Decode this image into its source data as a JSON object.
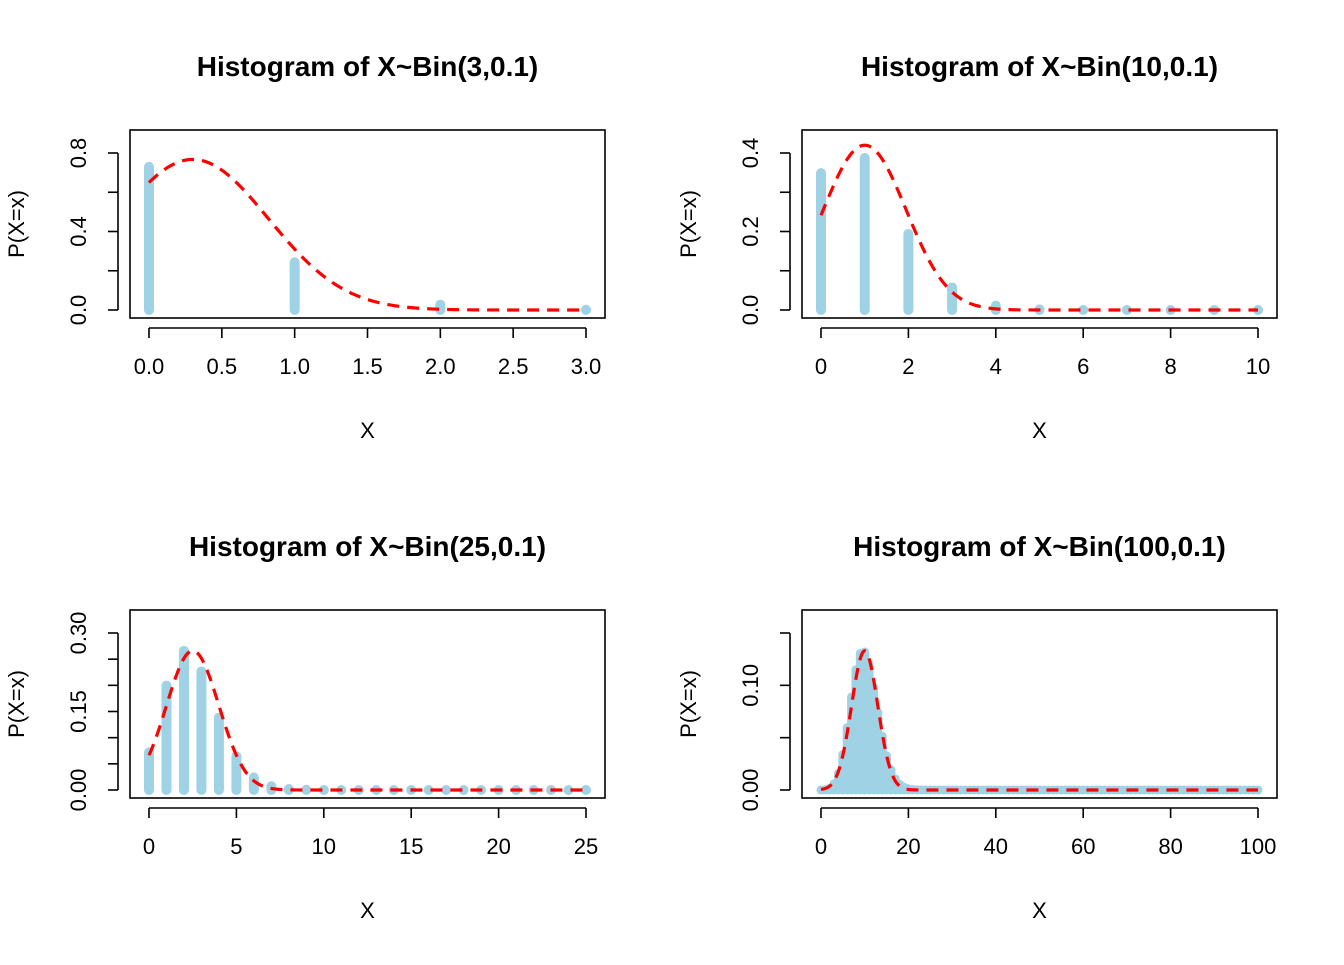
{
  "colors": {
    "bar": "#9fd2e4",
    "curve": "#ff0000",
    "axis": "#000000"
  },
  "chart_data": [
    {
      "type": "bar",
      "title": "Histogram of X~Bin(3,0.1)",
      "xlabel": "X",
      "ylabel": "P(X=x)",
      "n": 3,
      "p": 0.1,
      "xlim": [
        0,
        3
      ],
      "ylim": [
        0,
        0.9
      ],
      "xticks": [
        0,
        0.5,
        1,
        1.5,
        2,
        2.5,
        3
      ],
      "xtick_labels": [
        "0.0",
        "0.5",
        "1.0",
        "1.5",
        "2.0",
        "2.5",
        "3.0"
      ],
      "yticks": [
        0,
        0.2,
        0.4,
        0.6,
        0.8
      ],
      "ytick_labels": [
        "0.0",
        "",
        "0.4",
        "",
        "0.8"
      ],
      "x": [
        0,
        1,
        2,
        3
      ],
      "values": [
        0.729,
        0.243,
        0.027,
        0.001
      ],
      "overlay": {
        "type": "line",
        "style": "dashed",
        "description": "normal density",
        "mean": 0.3,
        "sd": 0.52
      }
    },
    {
      "type": "bar",
      "title": "Histogram of X~Bin(10,0.1)",
      "xlabel": "X",
      "ylabel": "P(X=x)",
      "n": 10,
      "p": 0.1,
      "xlim": [
        0,
        10
      ],
      "ylim": [
        0,
        0.48
      ],
      "xticks": [
        0,
        2,
        4,
        6,
        8,
        10
      ],
      "xtick_labels": [
        "0",
        "2",
        "4",
        "6",
        "8",
        "10"
      ],
      "yticks": [
        0,
        0.1,
        0.2,
        0.3,
        0.4
      ],
      "ytick_labels": [
        "0.0",
        "",
        "0.2",
        "",
        "0.4"
      ],
      "x": [
        0,
        1,
        2,
        3,
        4,
        5,
        6,
        7,
        8,
        9,
        10
      ],
      "values": [
        0.3487,
        0.3874,
        0.1937,
        0.0574,
        0.0112,
        0.0015,
        0.0001,
        0,
        0,
        0,
        0
      ],
      "overlay": {
        "type": "line",
        "style": "dashed",
        "description": "normal density",
        "mean": 1.0,
        "sd": 0.95
      }
    },
    {
      "type": "bar",
      "title": "Histogram of X~Bin(25,0.1)",
      "xlabel": "X",
      "ylabel": "P(X=x)",
      "n": 25,
      "p": 0.1,
      "xlim": [
        0,
        25
      ],
      "ylim": [
        0,
        0.3
      ],
      "xticks": [
        0,
        5,
        10,
        15,
        20,
        25
      ],
      "xtick_labels": [
        "0",
        "5",
        "10",
        "15",
        "20",
        "25"
      ],
      "yticks": [
        0,
        0.05,
        0.1,
        0.15,
        0.2,
        0.25,
        0.3
      ],
      "ytick_labels": [
        "0.00",
        "",
        "",
        "0.15",
        "",
        "",
        "0.30"
      ],
      "x": [
        0,
        1,
        2,
        3,
        4,
        5,
        6,
        7,
        8,
        9,
        10,
        11,
        12,
        13,
        14,
        15,
        16,
        17,
        18,
        19,
        20,
        21,
        22,
        23,
        24,
        25
      ],
      "values": [
        0.0718,
        0.1994,
        0.2659,
        0.2265,
        0.1384,
        0.0646,
        0.0239,
        0.0072,
        0.0018,
        0.0004,
        0.0001,
        0,
        0,
        0,
        0,
        0,
        0,
        0,
        0,
        0,
        0,
        0,
        0,
        0,
        0,
        0
      ],
      "overlay": {
        "type": "line",
        "style": "dashed",
        "description": "normal density",
        "mean": 2.5,
        "sd": 1.5
      }
    },
    {
      "type": "bar",
      "title": "Histogram of X~Bin(100,0.1)",
      "xlabel": "X",
      "ylabel": "P(X=x)",
      "n": 100,
      "p": 0.1,
      "xlim": [
        0,
        100
      ],
      "ylim": [
        0,
        0.15
      ],
      "xticks": [
        0,
        20,
        40,
        60,
        80,
        100
      ],
      "xtick_labels": [
        "0",
        "20",
        "40",
        "60",
        "80",
        "100"
      ],
      "yticks": [
        0,
        0.05,
        0.1,
        0.15
      ],
      "ytick_labels": [
        "0.00",
        "",
        "0.10",
        ""
      ],
      "x_range": [
        0,
        100
      ],
      "values_rule": "binomial pmf with n=100, p=0.1 (peak about 0.132 at x=10)",
      "overlay": {
        "type": "line",
        "style": "dashed",
        "description": "normal density",
        "mean": 10,
        "sd": 3
      }
    }
  ]
}
